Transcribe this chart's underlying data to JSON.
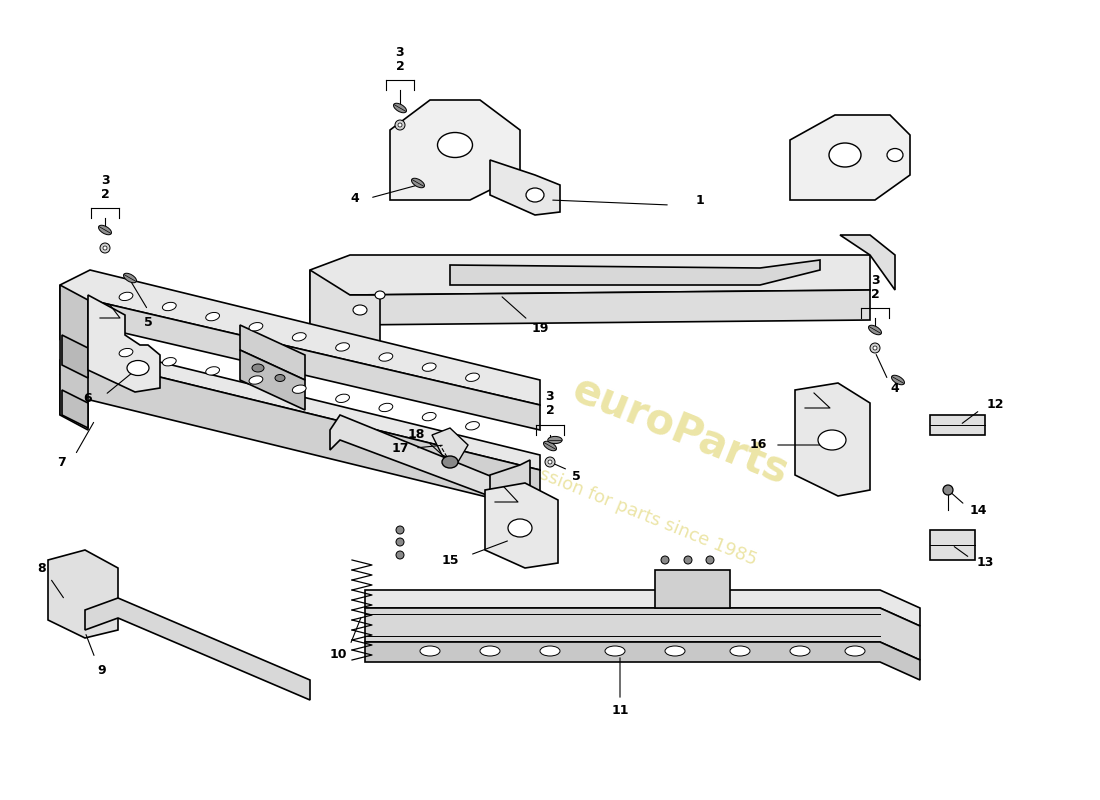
{
  "bg_color": "#ffffff",
  "line_color": "#000000",
  "lw": 1.2,
  "watermark1": "euroParts",
  "watermark2": "a passion for parts since 1985",
  "wm_color": "#c8b400",
  "wm_alpha": 0.35,
  "fig_w": 11.0,
  "fig_h": 8.0,
  "dpi": 100,
  "xlim": [
    0,
    1100
  ],
  "ylim": [
    0,
    800
  ]
}
